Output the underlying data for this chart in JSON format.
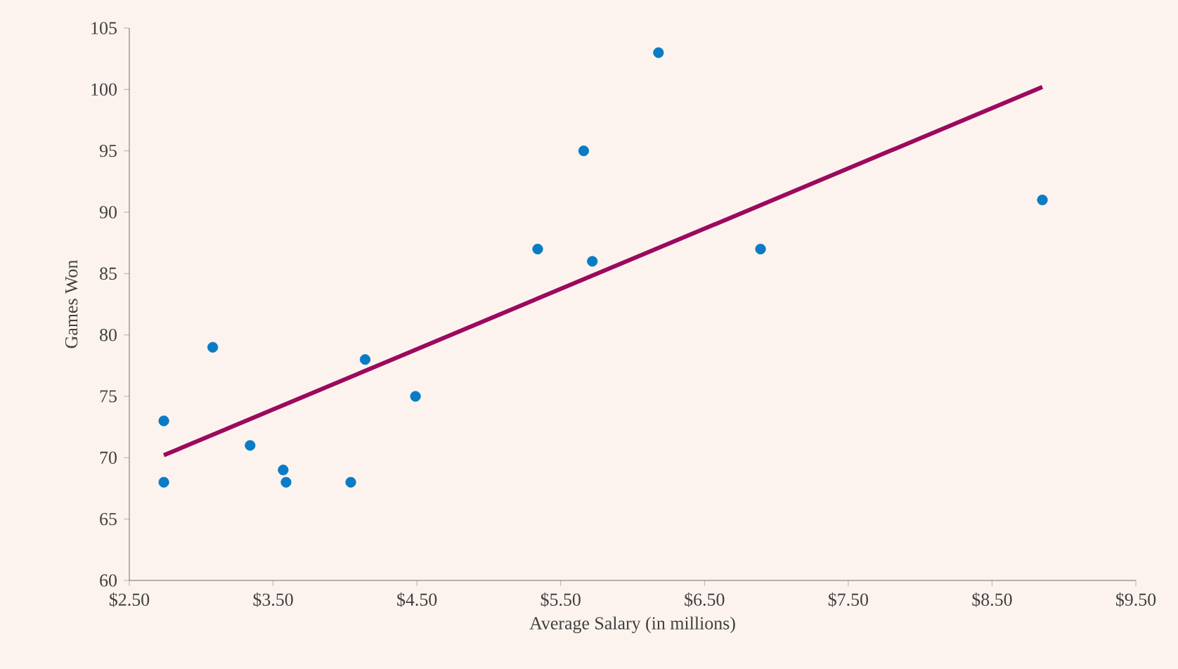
{
  "chart_data": {
    "type": "scatter",
    "xlabel": "Average Salary (in millions)",
    "ylabel": "Games Won",
    "xlim": [
      2.5,
      9.5
    ],
    "ylim": [
      60,
      105
    ],
    "xticks": [
      {
        "value": 2.5,
        "label": "$2.50"
      },
      {
        "value": 3.5,
        "label": "$3.50"
      },
      {
        "value": 4.5,
        "label": "$4.50"
      },
      {
        "value": 5.5,
        "label": "$5.50"
      },
      {
        "value": 6.5,
        "label": "$6.50"
      },
      {
        "value": 7.5,
        "label": "$7.50"
      },
      {
        "value": 8.5,
        "label": "$8.50"
      },
      {
        "value": 9.5,
        "label": "$9.50"
      }
    ],
    "yticks": [
      60,
      65,
      70,
      75,
      80,
      85,
      90,
      95,
      100,
      105
    ],
    "series": [
      {
        "color": "#0a7bc4",
        "x": [
          2.74,
          2.74,
          3.08,
          3.34,
          3.57,
          3.59,
          4.04,
          4.14,
          4.49,
          5.34,
          5.66,
          5.72,
          6.18,
          6.89,
          8.85
        ],
        "values": [
          73,
          68,
          79,
          71,
          69,
          68,
          68,
          78,
          75,
          87,
          95,
          86,
          103,
          87,
          91
        ]
      },
      {
        "type": "line",
        "color": "#9b0a5e",
        "x": [
          2.74,
          8.85
        ],
        "values": [
          70.2,
          100.2
        ]
      }
    ]
  }
}
